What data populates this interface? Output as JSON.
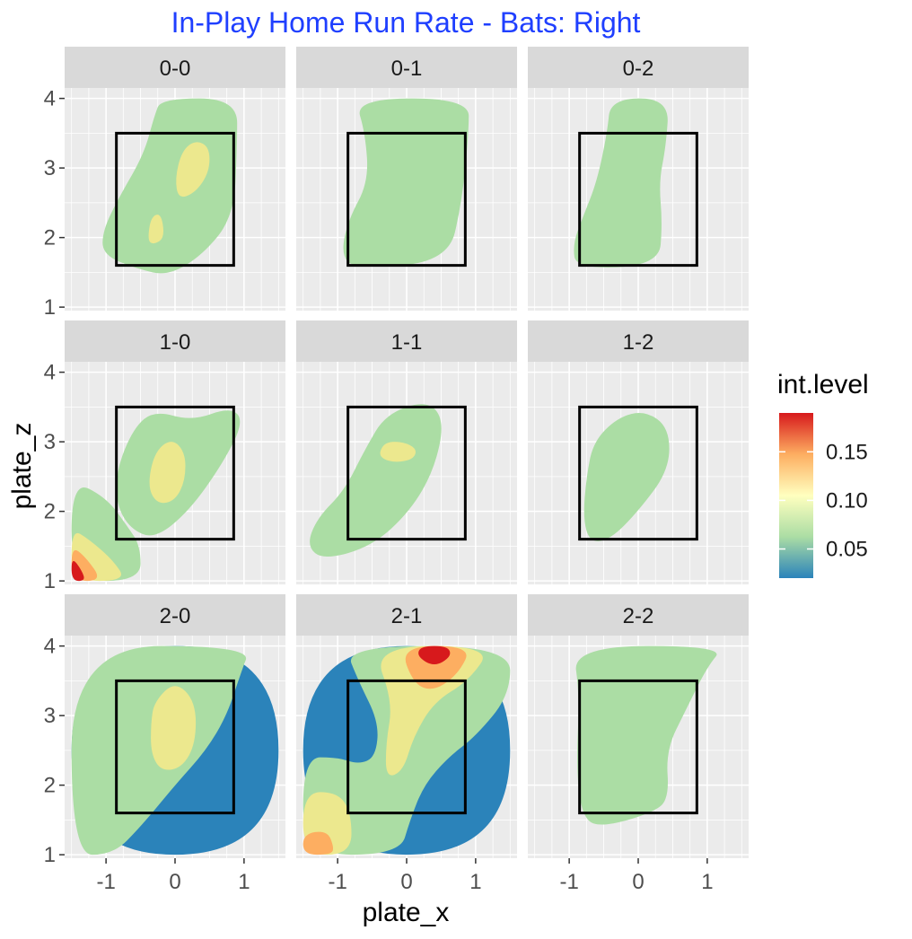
{
  "chart_data": {
    "type": "contour",
    "title": "In-Play Home Run Rate - Bats: Right",
    "title_color": "#1f3fff",
    "xlabel": "plate_x",
    "ylabel": "plate_z",
    "xlim": [
      -1.6,
      1.6
    ],
    "ylim": [
      0.95,
      4.15
    ],
    "x_ticks": [
      -1,
      0,
      1
    ],
    "y_ticks": [
      1,
      2,
      3,
      4
    ],
    "strike_zone": {
      "x": [
        -0.85,
        0.85
      ],
      "z": [
        1.6,
        3.5
      ]
    },
    "legend": {
      "title": "int.level",
      "range": [
        0.02,
        0.19
      ],
      "ticks": [
        0.05,
        0.1,
        0.15
      ],
      "tick_labels": [
        "0.05",
        "0.10",
        "0.15"
      ],
      "colors": [
        "#2b83ba",
        "#abdda4",
        "#ffffbf",
        "#fdae61",
        "#d7191c"
      ]
    },
    "level_colors": {
      "low": "#2b83ba",
      "l05": "#abdda4",
      "l10": "#ece88e",
      "l15": "#fdae61",
      "l20": "#f46d43",
      "high": "#d7191c"
    },
    "panels": [
      {
        "label": "0-0",
        "regions": [
          {
            "level": "l05",
            "points": [
              [
                -1.05,
                2.1
              ],
              [
                -0.8,
                2.6
              ],
              [
                -0.45,
                3.2
              ],
              [
                -0.3,
                3.75
              ],
              [
                -0.2,
                4.0
              ],
              [
                0.9,
                4.0
              ],
              [
                0.9,
                3.3
              ],
              [
                0.85,
                2.3
              ],
              [
                0.4,
                1.75
              ],
              [
                -0.1,
                1.45
              ],
              [
                -0.55,
                1.55
              ],
              [
                -1.05,
                1.75
              ]
            ]
          },
          {
            "level": "l10",
            "points": [
              [
                0.0,
                2.85
              ],
              [
                0.1,
                3.25
              ],
              [
                0.3,
                3.4
              ],
              [
                0.5,
                3.3
              ],
              [
                0.5,
                2.95
              ],
              [
                0.3,
                2.65
              ],
              [
                0.05,
                2.55
              ]
            ]
          },
          {
            "level": "l10",
            "points": [
              [
                -0.4,
                1.95
              ],
              [
                -0.35,
                2.3
              ],
              [
                -0.2,
                2.35
              ],
              [
                -0.15,
                2.0
              ],
              [
                -0.3,
                1.9
              ]
            ]
          }
        ]
      },
      {
        "label": "0-1",
        "regions": [
          {
            "level": "l05",
            "points": [
              [
                -0.75,
                4.0
              ],
              [
                0.9,
                4.0
              ],
              [
                0.9,
                3.5
              ],
              [
                0.8,
                2.5
              ],
              [
                0.6,
                1.65
              ],
              [
                -0.75,
                1.55
              ],
              [
                -0.95,
                1.75
              ],
              [
                -0.85,
                2.25
              ],
              [
                -0.55,
                2.8
              ],
              [
                -0.6,
                3.5
              ]
            ]
          }
        ]
      },
      {
        "label": "0-2",
        "regions": [
          {
            "level": "l05",
            "points": [
              [
                -0.4,
                4.0
              ],
              [
                0.45,
                4.0
              ],
              [
                0.4,
                3.3
              ],
              [
                0.3,
                2.8
              ],
              [
                0.35,
                2.2
              ],
              [
                0.3,
                1.6
              ],
              [
                -0.9,
                1.55
              ],
              [
                -0.95,
                1.9
              ],
              [
                -0.8,
                2.3
              ],
              [
                -0.6,
                2.8
              ],
              [
                -0.45,
                3.5
              ]
            ]
          }
        ]
      },
      {
        "label": "1-0",
        "regions": [
          {
            "level": "l05",
            "points": [
              [
                -1.5,
                2.45
              ],
              [
                -1.0,
                2.2
              ],
              [
                -0.7,
                1.8
              ],
              [
                -0.5,
                1.5
              ],
              [
                -0.5,
                1.0
              ],
              [
                -1.5,
                1.0
              ]
            ]
          },
          {
            "level": "l05",
            "points": [
              [
                -0.85,
                2.6
              ],
              [
                -0.6,
                3.2
              ],
              [
                -0.3,
                3.45
              ],
              [
                0.25,
                3.3
              ],
              [
                0.8,
                3.5
              ],
              [
                1.0,
                3.3
              ],
              [
                0.7,
                2.7
              ],
              [
                0.2,
                2.0
              ],
              [
                -0.3,
                1.6
              ],
              [
                -0.65,
                1.75
              ],
              [
                -0.85,
                2.1
              ]
            ]
          },
          {
            "level": "l10",
            "points": [
              [
                -0.4,
                2.35
              ],
              [
                -0.3,
                2.85
              ],
              [
                -0.05,
                3.05
              ],
              [
                0.15,
                2.85
              ],
              [
                0.15,
                2.45
              ],
              [
                0.0,
                2.15
              ],
              [
                -0.25,
                2.1
              ]
            ]
          },
          {
            "level": "l10",
            "points": [
              [
                -1.5,
                1.75
              ],
              [
                -1.25,
                1.6
              ],
              [
                -0.9,
                1.3
              ],
              [
                -0.7,
                1.0
              ],
              [
                -1.5,
                1.0
              ]
            ]
          },
          {
            "level": "l15",
            "points": [
              [
                -1.5,
                1.5
              ],
              [
                -1.3,
                1.35
              ],
              [
                -1.05,
                1.0
              ],
              [
                -1.5,
                1.0
              ]
            ]
          },
          {
            "level": "high",
            "points": [
              [
                -1.5,
                1.35
              ],
              [
                -1.35,
                1.15
              ],
              [
                -1.3,
                1.0
              ],
              [
                -1.5,
                1.0
              ]
            ]
          }
        ]
      },
      {
        "label": "1-1",
        "regions": [
          {
            "level": "l05",
            "points": [
              [
                -1.45,
                1.5
              ],
              [
                -1.3,
                1.9
              ],
              [
                -0.9,
                2.3
              ],
              [
                -0.6,
                2.9
              ],
              [
                -0.3,
                3.4
              ],
              [
                0.3,
                3.6
              ],
              [
                0.55,
                3.3
              ],
              [
                0.4,
                2.6
              ],
              [
                0.05,
                2.0
              ],
              [
                -0.5,
                1.5
              ],
              [
                -1.2,
                1.3
              ]
            ]
          },
          {
            "level": "l10",
            "points": [
              [
                -0.4,
                2.85
              ],
              [
                -0.3,
                3.0
              ],
              [
                -0.05,
                3.0
              ],
              [
                0.15,
                2.9
              ],
              [
                0.1,
                2.75
              ],
              [
                -0.15,
                2.7
              ],
              [
                -0.35,
                2.75
              ]
            ]
          }
        ]
      },
      {
        "label": "1-2",
        "regions": [
          {
            "level": "l05",
            "points": [
              [
                -0.75,
                2.5
              ],
              [
                -0.65,
                3.0
              ],
              [
                -0.3,
                3.35
              ],
              [
                0.1,
                3.45
              ],
              [
                0.45,
                3.2
              ],
              [
                0.45,
                2.6
              ],
              [
                0.0,
                2.0
              ],
              [
                -0.4,
                1.6
              ],
              [
                -0.7,
                1.55
              ],
              [
                -0.8,
                1.9
              ]
            ]
          }
        ]
      },
      {
        "label": "2-0",
        "regions": [
          {
            "level": "low",
            "points": [
              [
                -1.5,
                1.0
              ],
              [
                1.5,
                1.0
              ],
              [
                1.5,
                4.0
              ],
              [
                -1.5,
                4.0
              ]
            ]
          },
          {
            "level": "l05",
            "points": [
              [
                -1.5,
                4.0
              ],
              [
                1.1,
                4.0
              ],
              [
                0.95,
                3.6
              ],
              [
                0.75,
                3.0
              ],
              [
                0.45,
                2.5
              ],
              [
                0.0,
                2.0
              ],
              [
                -0.5,
                1.4
              ],
              [
                -0.9,
                1.0
              ],
              [
                -1.5,
                1.0
              ]
            ]
          },
          {
            "level": "l10",
            "points": [
              [
                -0.35,
                2.9
              ],
              [
                -0.3,
                3.2
              ],
              [
                0.0,
                3.5
              ],
              [
                0.3,
                3.2
              ],
              [
                0.3,
                2.6
              ],
              [
                0.1,
                2.25
              ],
              [
                -0.2,
                2.2
              ],
              [
                -0.35,
                2.45
              ]
            ]
          }
        ]
      },
      {
        "label": "2-1",
        "regions": [
          {
            "level": "low",
            "points": [
              [
                -1.5,
                1.0
              ],
              [
                1.5,
                1.0
              ],
              [
                1.5,
                4.0
              ],
              [
                -1.5,
                4.0
              ]
            ]
          },
          {
            "level": "l05",
            "points": [
              [
                -1.5,
                2.4
              ],
              [
                -1.0,
                2.4
              ],
              [
                -0.7,
                2.3
              ],
              [
                -0.45,
                2.4
              ],
              [
                -0.4,
                2.9
              ],
              [
                -0.7,
                3.5
              ],
              [
                -0.9,
                4.0
              ],
              [
                1.5,
                4.0
              ],
              [
                1.5,
                3.3
              ],
              [
                1.0,
                2.7
              ],
              [
                0.6,
                2.4
              ],
              [
                0.25,
                2.0
              ],
              [
                0.05,
                1.5
              ],
              [
                -0.1,
                1.0
              ],
              [
                -1.5,
                1.0
              ]
            ]
          },
          {
            "level": "l10",
            "points": [
              [
                -0.5,
                4.0
              ],
              [
                1.25,
                4.0
              ],
              [
                0.9,
                3.5
              ],
              [
                0.4,
                3.2
              ],
              [
                0.1,
                2.7
              ],
              [
                -0.05,
                2.2
              ],
              [
                -0.3,
                2.1
              ],
              [
                -0.3,
                2.6
              ],
              [
                -0.2,
                3.2
              ]
            ]
          },
          {
            "level": "l10",
            "points": [
              [
                -1.5,
                1.9
              ],
              [
                -1.0,
                1.9
              ],
              [
                -0.8,
                1.6
              ],
              [
                -0.8,
                1.0
              ],
              [
                -1.5,
                1.0
              ]
            ]
          },
          {
            "level": "l15",
            "points": [
              [
                -0.1,
                4.0
              ],
              [
                0.95,
                4.0
              ],
              [
                0.75,
                3.6
              ],
              [
                0.4,
                3.35
              ],
              [
                0.1,
                3.45
              ]
            ]
          },
          {
            "level": "l15",
            "points": [
              [
                -1.5,
                1.3
              ],
              [
                -1.15,
                1.35
              ],
              [
                -1.05,
                1.1
              ],
              [
                -1.1,
                1.0
              ],
              [
                -1.5,
                1.0
              ]
            ]
          },
          {
            "level": "high",
            "points": [
              [
                0.15,
                3.85
              ],
              [
                0.4,
                3.7
              ],
              [
                0.65,
                3.85
              ],
              [
                0.6,
                4.0
              ],
              [
                0.2,
                4.0
              ]
            ]
          }
        ]
      },
      {
        "label": "2-2",
        "regions": [
          {
            "level": "l05",
            "points": [
              [
                -0.95,
                4.0
              ],
              [
                1.25,
                4.0
              ],
              [
                1.0,
                3.7
              ],
              [
                0.7,
                3.1
              ],
              [
                0.4,
                2.5
              ],
              [
                0.45,
                1.8
              ],
              [
                0.2,
                1.6
              ],
              [
                -0.5,
                1.4
              ],
              [
                -0.8,
                1.5
              ],
              [
                -0.9,
                2.2
              ],
              [
                -0.85,
                3.3
              ]
            ]
          }
        ]
      }
    ]
  }
}
